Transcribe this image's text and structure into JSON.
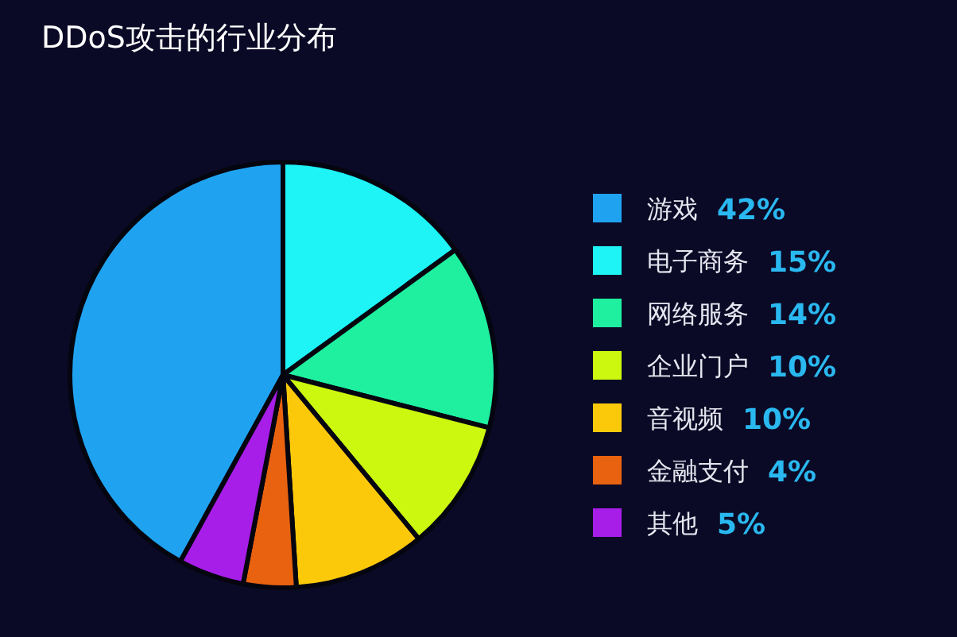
{
  "chart_data": {
    "type": "pie",
    "title": "DDoS攻击的行业分布",
    "categories": [
      "游戏",
      "电子商务",
      "网络服务",
      "企业门户",
      "音视频",
      "金融支付",
      "其他"
    ],
    "values": [
      42,
      15,
      14,
      10,
      10,
      4,
      5
    ],
    "value_labels": [
      "42%",
      "15%",
      "14%",
      "10%",
      "10%",
      "4%",
      "5%"
    ],
    "colors": [
      "#1fa3f0",
      "#1ef3f5",
      "#1ef0a0",
      "#ccf70e",
      "#fcc90a",
      "#e8620f",
      "#a71ee8"
    ],
    "legend": "right"
  }
}
